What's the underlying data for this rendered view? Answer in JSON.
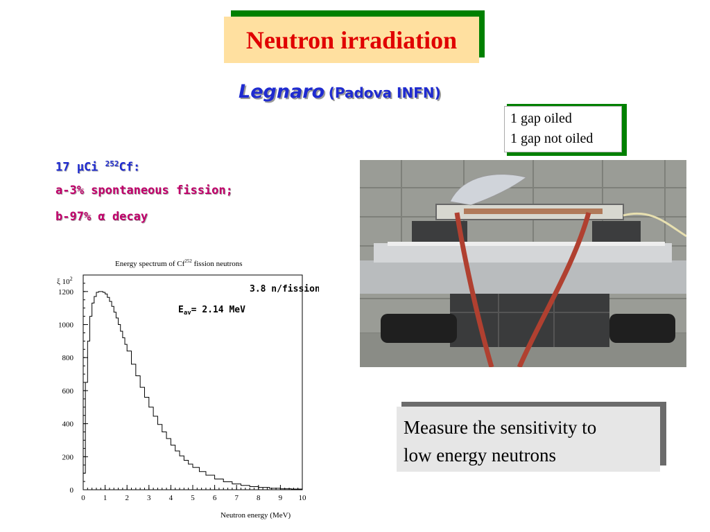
{
  "slide": {
    "title": "Neutron irradiation",
    "subtitle_main": "Legnaro",
    "subtitle_sub": "(Padova INFN)"
  },
  "gap_note": {
    "line1": "1 gap oiled",
    "line2": "1 gap not oiled"
  },
  "facts": {
    "source_prefix": "17 μCi ",
    "source_isotope_mass": "252",
    "source_element": "Cf:",
    "fission": "a-3% spontaneous fission;",
    "decay": "b-97% α decay"
  },
  "measure_box": {
    "line1": "Measure the sensitivity to",
    "line2": "low energy neutrons"
  },
  "photo": {
    "description_icon": "detector-setup-photo"
  },
  "colors": {
    "title_red": "#e00000",
    "title_bg": "#ffe0a0",
    "title_shadow": "#008000",
    "subtitle_blue": "#1f2bd0",
    "fact_red": "#c0006a"
  },
  "chart_data": {
    "type": "line",
    "title": "Energy spectrum of Cf",
    "title_superscript": "252",
    "title_suffix": " fission neutrons",
    "xlabel": "Neutron energy (MeV)",
    "ylabel": "",
    "y_multiplier_label": "ξ 10",
    "y_multiplier_exp": "2",
    "xlim": [
      0,
      10
    ],
    "ylim": [
      0,
      1300
    ],
    "x_ticks": [
      "0",
      "1",
      "2",
      "3",
      "4",
      "5",
      "6",
      "7",
      "8",
      "9",
      "10"
    ],
    "y_ticks": [
      "0",
      "200",
      "400",
      "600",
      "800",
      "1000",
      "1200"
    ],
    "annotation_1": "3.8 n/fission",
    "annotation_2_prefix": "E",
    "annotation_2_sub": "av",
    "annotation_2_suffix": "= 2.14 MeV",
    "series": [
      {
        "x": [
          0.0,
          0.1,
          0.2,
          0.3,
          0.4,
          0.5,
          0.6,
          0.7,
          0.8,
          0.9,
          1.0,
          1.1,
          1.2,
          1.3,
          1.4,
          1.5,
          1.6,
          1.7,
          1.8,
          1.9,
          2.0,
          2.2,
          2.4,
          2.6,
          2.8,
          3.0,
          3.2,
          3.4,
          3.6,
          3.8,
          4.0,
          4.2,
          4.4,
          4.6,
          4.8,
          5.0,
          5.3,
          5.6,
          6.0,
          6.4,
          6.8,
          7.2,
          7.6,
          8.0,
          8.5,
          9.0,
          9.5,
          10.0
        ],
        "y": [
          100,
          650,
          900,
          1050,
          1130,
          1170,
          1195,
          1200,
          1200,
          1195,
          1185,
          1165,
          1140,
          1110,
          1075,
          1040,
          1000,
          960,
          920,
          880,
          840,
          760,
          690,
          620,
          560,
          500,
          445,
          395,
          350,
          310,
          270,
          235,
          205,
          178,
          155,
          135,
          110,
          88,
          65,
          48,
          35,
          26,
          19,
          14,
          9,
          6,
          4,
          3
        ]
      }
    ]
  }
}
